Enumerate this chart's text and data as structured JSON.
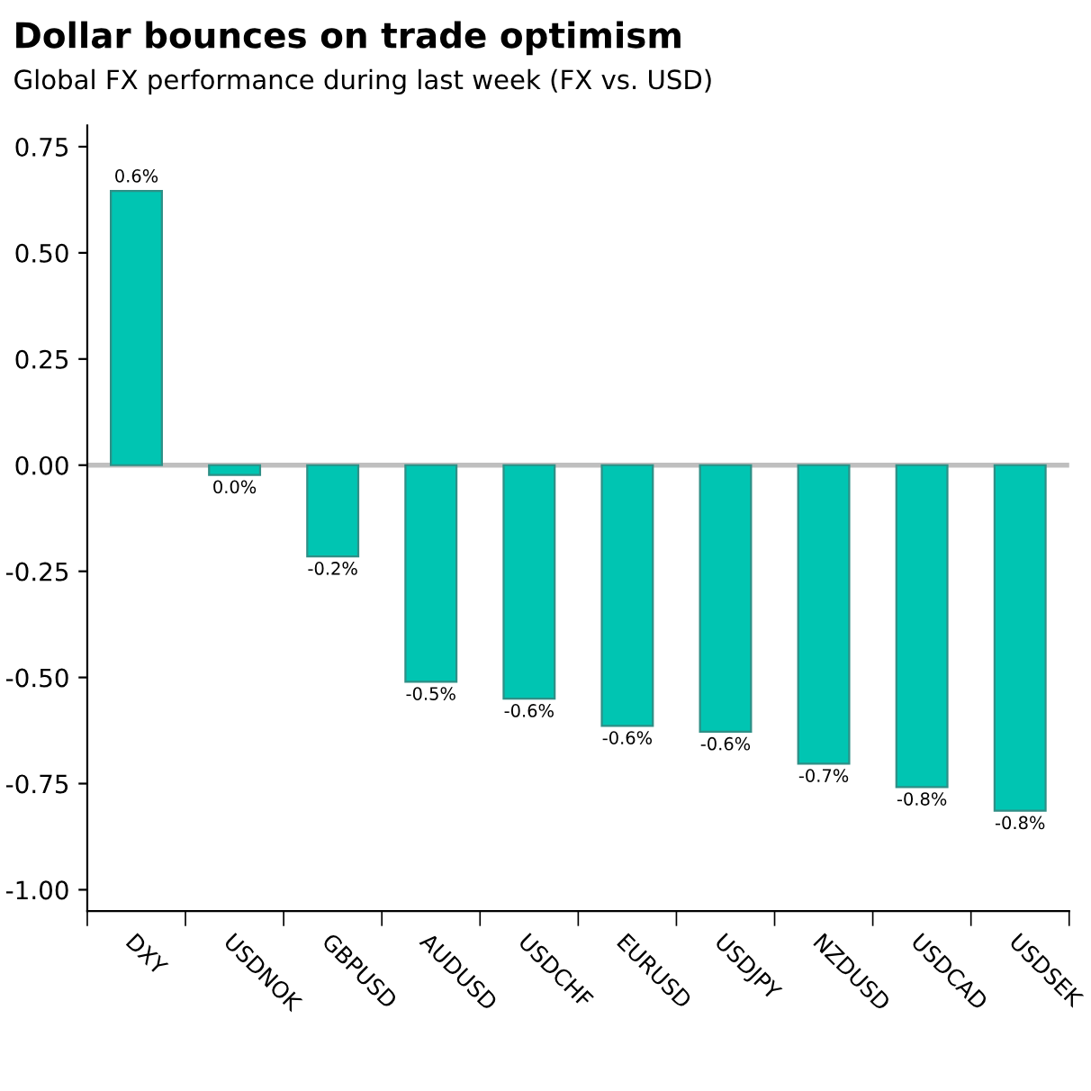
{
  "chart_data": {
    "type": "bar",
    "title": "Dollar bounces on trade optimism",
    "subtitle": "Global FX performance during last week (FX vs. USD)",
    "categories": [
      "DXY",
      "USDNOK",
      "GBPUSD",
      "AUDUSD",
      "USDCHF",
      "EURUSD",
      "USDJPY",
      "NZDUSD",
      "USDCAD",
      "USDSEK"
    ],
    "values": [
      0.646,
      -0.023,
      -0.215,
      -0.51,
      -0.55,
      -0.614,
      -0.628,
      -0.703,
      -0.758,
      -0.814
    ],
    "value_labels": [
      "0.6%",
      "0.0%",
      "-0.2%",
      "-0.5%",
      "-0.6%",
      "-0.6%",
      "-0.6%",
      "-0.7%",
      "-0.8%",
      "-0.8%"
    ],
    "color": "#00c5b2",
    "ylim": [
      -1.05,
      0.8
    ],
    "yticks": [
      {
        "value": -1.0,
        "label": "-1.00"
      },
      {
        "value": -0.75,
        "label": "-0.75"
      },
      {
        "value": -0.5,
        "label": "-0.50"
      },
      {
        "value": -0.25,
        "label": "-0.25"
      },
      {
        "value": 0,
        "label": "0.00"
      },
      {
        "value": 0.25,
        "label": "0.25"
      },
      {
        "value": 0.5,
        "label": "0.50"
      },
      {
        "value": 0.75,
        "label": "0.75"
      }
    ],
    "ref_lines": [
      {
        "axis": "y",
        "value": 0,
        "color": "#bfbfbf"
      }
    ],
    "grid": false,
    "legend": false
  }
}
